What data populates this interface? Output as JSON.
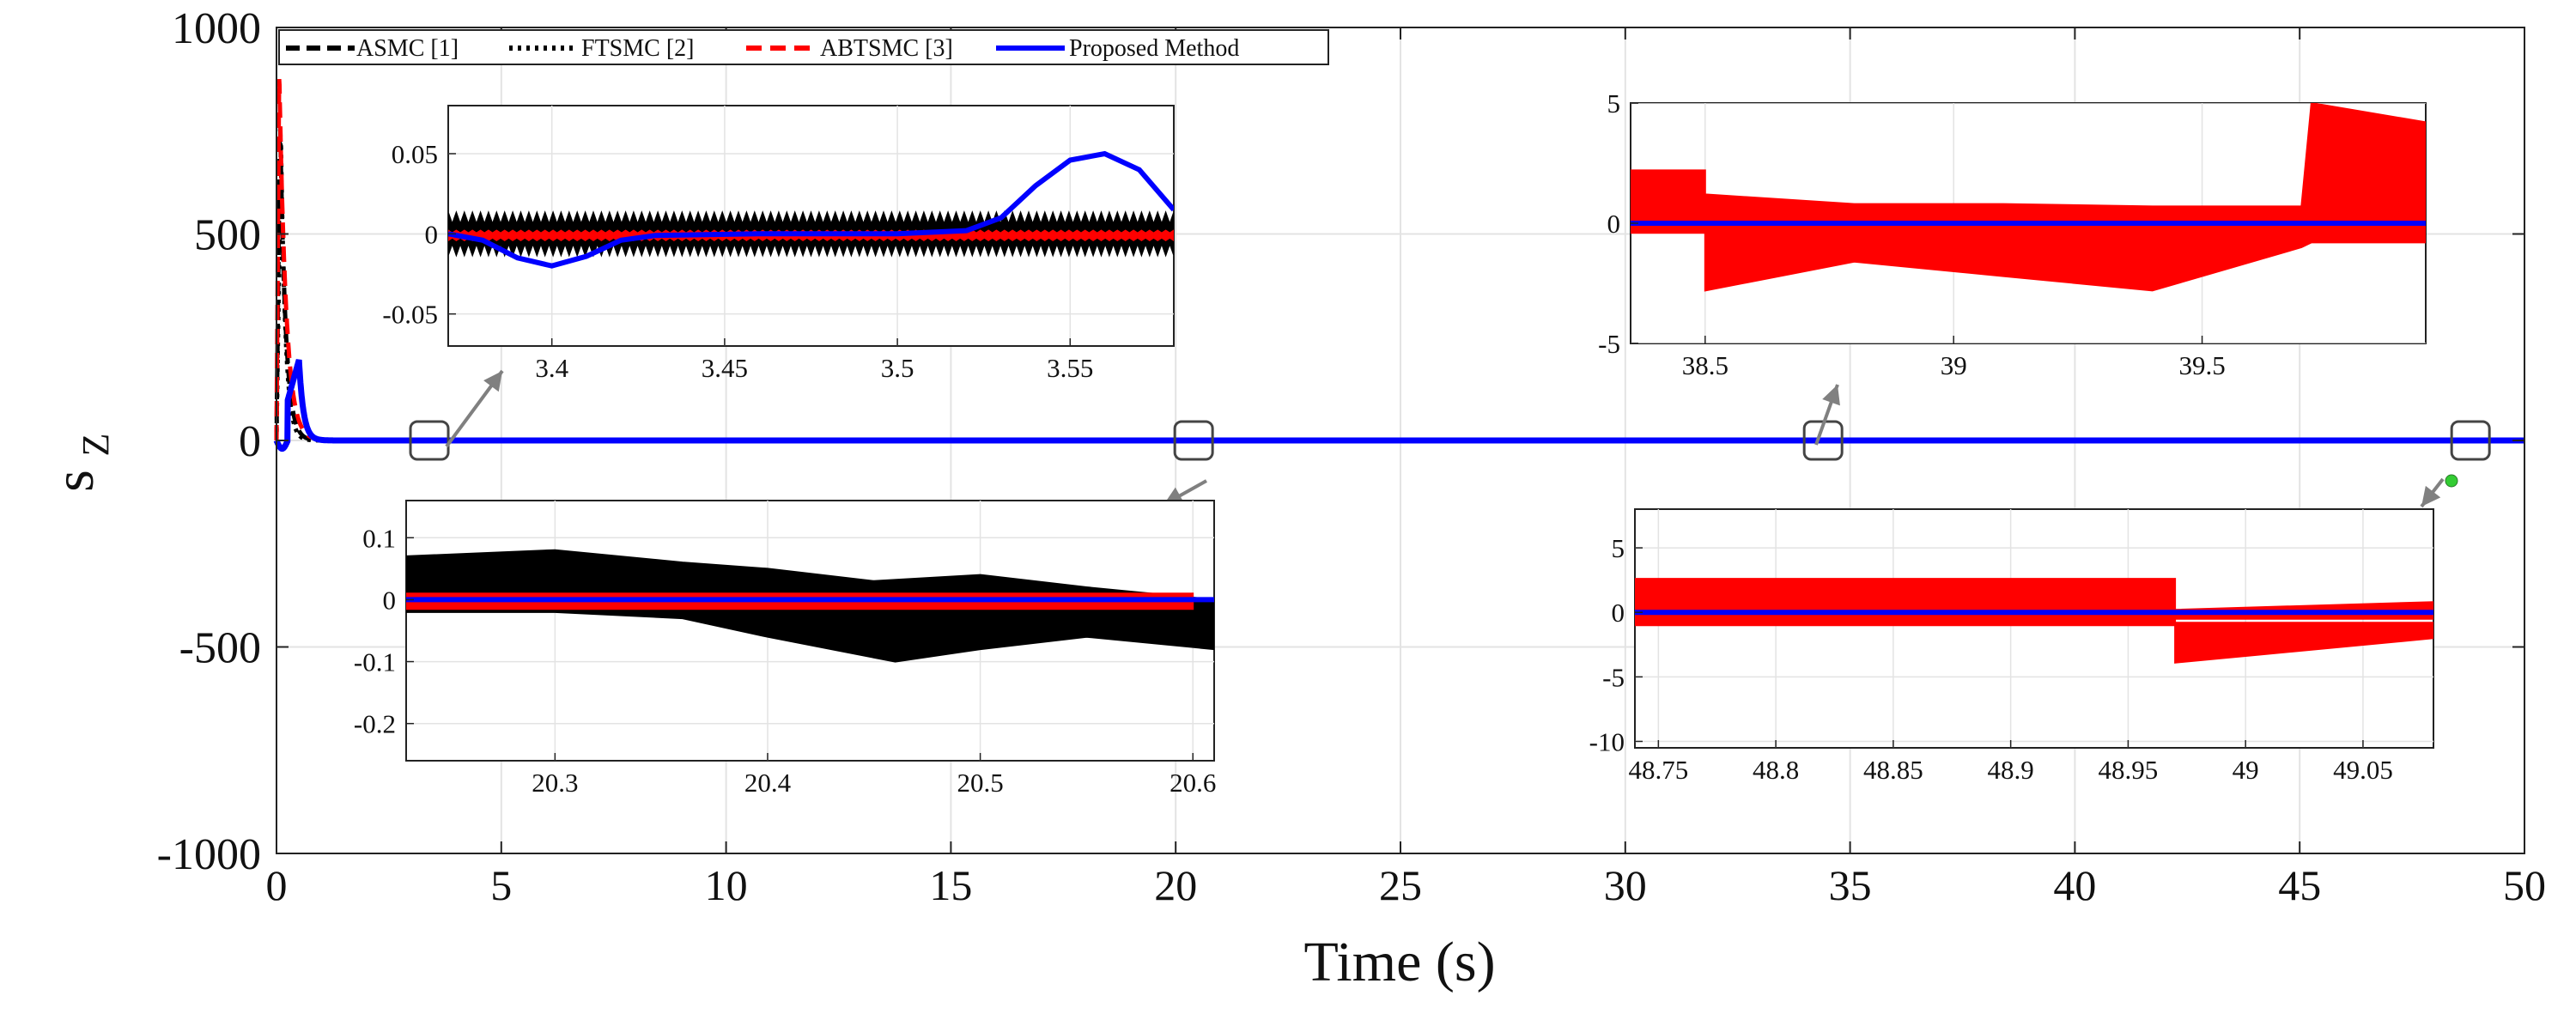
{
  "chart_data": {
    "type": "line",
    "xlabel": "Time (s)",
    "ylabel": "s",
    "ylabel_sub": "Z",
    "xlim": [
      0,
      50
    ],
    "ylim": [
      -1000,
      1000
    ],
    "xticks": [
      0,
      5,
      10,
      15,
      20,
      25,
      30,
      35,
      40,
      45,
      50
    ],
    "yticks": [
      -1000,
      -500,
      0,
      500,
      1000
    ],
    "grid": true,
    "legend_position": "top-left",
    "colors": {
      "asmc": "#000000",
      "ftsmc": "#000000",
      "abtsmc": "#ff0000",
      "proposed": "#0000ff",
      "grid": "#e3e3e3",
      "arrow": "#808080",
      "marker": "#33cc33"
    },
    "legend": [
      {
        "key": "asmc",
        "label": "ASMC [1]",
        "style": "dashed"
      },
      {
        "key": "ftsmc",
        "label": "FTSMC [2]",
        "style": "dotted"
      },
      {
        "key": "abtsmc",
        "label": "ABTSMC [3]",
        "style": "dashed"
      },
      {
        "key": "proposed",
        "label": "Proposed Method",
        "style": "solid"
      }
    ],
    "series": [
      {
        "name": "ASMC [1]",
        "key": "asmc",
        "peak": 780,
        "peak_time": 0.08,
        "decay": 0.12
      },
      {
        "name": "FTSMC [2]",
        "key": "ftsmc",
        "peak": 720,
        "peak_time": 0.1,
        "decay": 0.1
      },
      {
        "name": "ABTSMC [3]",
        "key": "abtsmc",
        "peak": 900,
        "peak_time": 0.06,
        "decay": 0.15
      },
      {
        "name": "Proposed Method",
        "key": "proposed",
        "peak": 195,
        "peak_time": 0.5,
        "decay": 0.1
      }
    ],
    "zoom_markers_x": [
      3.4,
      20.4,
      34.4,
      48.8
    ],
    "insets": [
      {
        "id": "inset-1",
        "xlim": [
          3.37,
          3.58
        ],
        "ylim": [
          -0.07,
          0.08
        ],
        "xticks": [
          "3.4",
          "3.45",
          "3.5",
          "3.55"
        ],
        "xtick_values": [
          3.4,
          3.45,
          3.5,
          3.55
        ],
        "yticks": [
          "0.05",
          "0",
          "-0.05"
        ],
        "ytick_values": [
          0.05,
          0,
          -0.05
        ],
        "black_band": {
          "center": 0.0,
          "amp": 0.013
        },
        "red_band": {
          "center": -0.001,
          "amp": 0.003
        },
        "blue": [
          [
            3.37,
            0.0
          ],
          [
            3.38,
            -0.004
          ],
          [
            3.39,
            -0.015
          ],
          [
            3.4,
            -0.02
          ],
          [
            3.41,
            -0.014
          ],
          [
            3.42,
            -0.004
          ],
          [
            3.43,
            -0.001
          ],
          [
            3.46,
            0.0
          ],
          [
            3.5,
            0.0
          ],
          [
            3.52,
            0.002
          ],
          [
            3.53,
            0.01
          ],
          [
            3.54,
            0.03
          ],
          [
            3.55,
            0.046
          ],
          [
            3.56,
            0.05
          ],
          [
            3.57,
            0.04
          ],
          [
            3.58,
            0.015
          ]
        ]
      },
      {
        "id": "inset-2",
        "xlim": [
          38.35,
          39.95
        ],
        "ylim": [
          -5,
          5
        ],
        "xticks": [
          "38.5",
          "39",
          "39.5"
        ],
        "xtick_values": [
          38.5,
          39.0,
          39.5
        ],
        "yticks": [
          "5",
          "0",
          "-5"
        ],
        "ytick_values": [
          5,
          0,
          -5
        ],
        "red_poly": [
          [
            38.35,
            2.2
          ],
          [
            38.5,
            2.2
          ],
          [
            38.5,
            1.2
          ],
          [
            38.8,
            0.8
          ],
          [
            39.1,
            0.8
          ],
          [
            39.4,
            0.7
          ],
          [
            39.7,
            0.7
          ],
          [
            39.72,
            5.0
          ],
          [
            39.95,
            4.2
          ],
          [
            39.95,
            -0.8
          ],
          [
            39.72,
            -0.8
          ],
          [
            39.7,
            -1.0
          ],
          [
            39.4,
            -2.8
          ],
          [
            39.1,
            -2.2
          ],
          [
            38.8,
            -1.6
          ],
          [
            38.5,
            -2.8
          ],
          [
            38.5,
            -0.4
          ],
          [
            38.35,
            -0.4
          ]
        ],
        "blue": [
          [
            38.35,
            0.0
          ],
          [
            39.95,
            0.0
          ]
        ]
      },
      {
        "id": "inset-3",
        "xlim": [
          20.23,
          20.61
        ],
        "ylim": [
          -0.26,
          0.16
        ],
        "xticks": [
          "20.3",
          "20.4",
          "20.5",
          "20.6"
        ],
        "xtick_values": [
          20.3,
          20.4,
          20.5,
          20.6
        ],
        "yticks": [
          "0.1",
          "0",
          "-0.1",
          "-0.2"
        ],
        "ytick_values": [
          0.1,
          0.0,
          -0.1,
          -0.2
        ],
        "black_poly": [
          [
            20.23,
            0.07
          ],
          [
            20.3,
            0.08
          ],
          [
            20.36,
            0.06
          ],
          [
            20.4,
            0.05
          ],
          [
            20.45,
            0.03
          ],
          [
            20.5,
            0.04
          ],
          [
            20.55,
            0.02
          ],
          [
            20.61,
            0.0
          ],
          [
            20.61,
            -0.08
          ],
          [
            20.55,
            -0.06
          ],
          [
            20.5,
            -0.08
          ],
          [
            20.46,
            -0.1
          ],
          [
            20.4,
            -0.06
          ],
          [
            20.36,
            -0.03
          ],
          [
            20.3,
            -0.02
          ],
          [
            20.23,
            -0.02
          ]
        ],
        "red_poly": [
          [
            20.23,
            0.01
          ],
          [
            20.6,
            0.01
          ],
          [
            20.6,
            -0.015
          ],
          [
            20.23,
            -0.015
          ]
        ],
        "blue": [
          [
            20.23,
            0.0
          ],
          [
            20.61,
            0.0
          ]
        ]
      },
      {
        "id": "inset-4",
        "xlim": [
          48.74,
          49.08
        ],
        "ylim": [
          -10.5,
          8
        ],
        "xticks": [
          "48.75",
          "48.8",
          "48.85",
          "48.9",
          "48.95",
          "49",
          "49.05"
        ],
        "xtick_values": [
          48.75,
          48.8,
          48.85,
          48.9,
          48.95,
          49.0,
          49.05
        ],
        "yticks": [
          "5",
          "0",
          "-5",
          "-10"
        ],
        "ytick_values": [
          5,
          0,
          -5,
          -10
        ],
        "red_poly": [
          [
            48.74,
            2.6
          ],
          [
            48.97,
            2.6
          ],
          [
            48.97,
            -0.5
          ],
          [
            49.08,
            -0.5
          ],
          [
            49.08,
            0.8
          ],
          [
            48.97,
            0.2
          ],
          [
            48.97,
            -3.9
          ],
          [
            49.08,
            -2.0
          ],
          [
            49.08,
            -0.8
          ],
          [
            48.97,
            -0.8
          ],
          [
            48.97,
            -1.0
          ],
          [
            48.74,
            -1.0
          ]
        ],
        "blue": [
          [
            48.74,
            0.0
          ],
          [
            49.08,
            0.0
          ]
        ]
      }
    ]
  }
}
